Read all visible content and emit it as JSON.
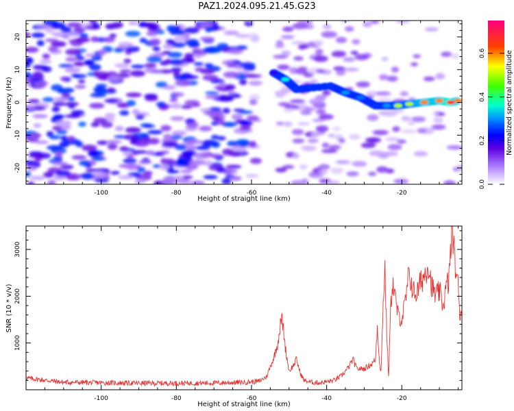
{
  "page_title": "PAZ1.2024.095.21.45.G23",
  "chart_data": [
    {
      "type": "heatmap",
      "xlabel": "Height of straight line (km)",
      "ylabel": "Frequency (Hz)",
      "xlim": [
        -120,
        -4
      ],
      "ylim": [
        -25,
        25
      ],
      "xticks": [
        -100,
        -80,
        -60,
        -40,
        -20
      ],
      "yticks": [
        -20,
        -10,
        0,
        10,
        20
      ],
      "grid": false,
      "colorbar": {
        "label": "Normalized spectral amplitude",
        "range": [
          0.0,
          0.75
        ],
        "ticks": [
          0.0,
          0.2,
          0.4,
          0.6
        ],
        "colormap": "rainbow (white-purple-blue-cyan-green-yellow-red-magenta)"
      },
      "ridge": [
        {
          "x": -54,
          "y": 9,
          "amplitude": 0.2
        },
        {
          "x": -51,
          "y": 7,
          "amplitude": 0.35
        },
        {
          "x": -48,
          "y": 4,
          "amplitude": 0.25
        },
        {
          "x": -39,
          "y": 5,
          "amplitude": 0.25
        },
        {
          "x": -35,
          "y": 3,
          "amplitude": 0.3
        },
        {
          "x": -31,
          "y": 1.5,
          "amplitude": 0.28
        },
        {
          "x": -27,
          "y": -1,
          "amplitude": 0.25
        },
        {
          "x": -24,
          "y": -1,
          "amplitude": 0.3
        },
        {
          "x": -21,
          "y": -1,
          "amplitude": 0.5
        },
        {
          "x": -18,
          "y": -0.5,
          "amplitude": 0.5
        },
        {
          "x": -14,
          "y": 0,
          "amplitude": 0.6
        },
        {
          "x": -10,
          "y": 0.5,
          "amplitude": 0.6
        },
        {
          "x": -7,
          "y": 0,
          "amplitude": 0.65
        },
        {
          "x": -5,
          "y": 0.5,
          "amplitude": 0.6
        }
      ],
      "empty_band": {
        "x": [
          -58.5,
          -52.5
        ]
      }
    },
    {
      "type": "line",
      "xlabel": "Height of straight line (km)",
      "ylabel": "SNR (10 * v/v)",
      "xlim": [
        -120,
        -4
      ],
      "ylim": [
        0,
        3500
      ],
      "xticks": [
        -100,
        -80,
        -60,
        -40,
        -20
      ],
      "yticks": [
        1000,
        2000,
        3000
      ],
      "grid": false,
      "series": [
        {
          "color": "#e8312f",
          "x": [
            -120,
            -110,
            -100,
            -90,
            -80,
            -70,
            -62,
            -58,
            -56,
            -54,
            -53,
            -52,
            -51.5,
            -51,
            -50,
            -49,
            -48,
            -47,
            -46,
            -44,
            -42,
            -40,
            -38,
            -36,
            -34,
            -33,
            -32,
            -30,
            -28,
            -27,
            -26.5,
            -26,
            -25.5,
            -25,
            -24.5,
            -24,
            -23.5,
            -23,
            -22.5,
            -22,
            -21,
            -20,
            -19,
            -18,
            -17,
            -16,
            -15,
            -14,
            -13,
            -12,
            -11,
            -10,
            -9,
            -8,
            -7.5,
            -7,
            -6.5,
            -6,
            -5,
            -4.5,
            -4
          ],
          "y": [
            250,
            160,
            150,
            140,
            140,
            145,
            160,
            180,
            280,
            700,
            1000,
            1550,
            1300,
            900,
            400,
            500,
            650,
            350,
            200,
            160,
            150,
            170,
            200,
            300,
            500,
            650,
            450,
            450,
            550,
            650,
            1400,
            650,
            350,
            1800,
            2650,
            1200,
            250,
            1700,
            2300,
            2100,
            1600,
            1500,
            1900,
            2500,
            2100,
            2050,
            2300,
            2450,
            2700,
            2200,
            2000,
            2100,
            1800,
            2250,
            2300,
            3000,
            3500,
            2800,
            2200,
            1600,
            1800
          ]
        }
      ]
    }
  ]
}
